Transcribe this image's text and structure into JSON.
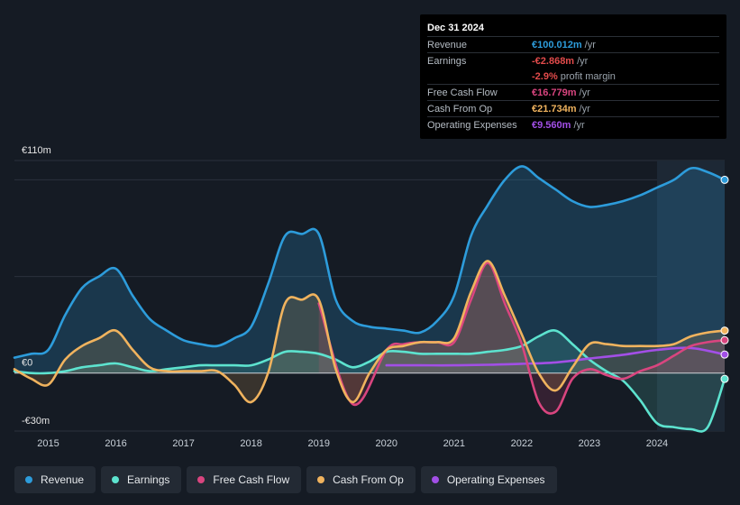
{
  "tooltip": {
    "date": "Dec 31 2024",
    "rows": [
      {
        "label": "Revenue",
        "value": "€100.012m",
        "unit": "/yr",
        "color": "#2d9cdb"
      },
      {
        "label": "Earnings",
        "value": "-€2.868m",
        "unit": "/yr",
        "color": "#e24b4b"
      },
      {
        "label": "",
        "value": "-2.9%",
        "unit": "profit margin",
        "color": "#e24b4b"
      },
      {
        "label": "Free Cash Flow",
        "value": "€16.779m",
        "unit": "/yr",
        "color": "#d9457f"
      },
      {
        "label": "Cash From Op",
        "value": "€21.734m",
        "unit": "/yr",
        "color": "#f0b35e"
      },
      {
        "label": "Operating Expenses",
        "value": "€9.560m",
        "unit": "/yr",
        "color": "#a24fe6"
      }
    ]
  },
  "legend": [
    {
      "label": "Revenue",
      "color": "#2d9cdb"
    },
    {
      "label": "Earnings",
      "color": "#5de3cf"
    },
    {
      "label": "Free Cash Flow",
      "color": "#d9457f"
    },
    {
      "label": "Cash From Op",
      "color": "#f0b35e"
    },
    {
      "label": "Operating Expenses",
      "color": "#a24fe6"
    }
  ],
  "chart_data": {
    "type": "line",
    "title": "",
    "xlabel": "",
    "ylabel": "",
    "y_tick_labels": [
      "€110m",
      "€0",
      "-€30m"
    ],
    "x_tick_labels": [
      "2015",
      "2016",
      "2017",
      "2018",
      "2019",
      "2020",
      "2021",
      "2022",
      "2023",
      "2024"
    ],
    "x_ticks": [
      2015,
      2016,
      2017,
      2018,
      2019,
      2020,
      2021,
      2022,
      2023,
      2024
    ],
    "xlim": [
      2014.5,
      2025.0
    ],
    "ylim": [
      -30,
      110
    ],
    "forecast_start": 2024.0,
    "series": [
      {
        "name": "Revenue",
        "color": "#2d9cdb",
        "fill": true,
        "x": [
          2014.5,
          2014.75,
          2015.0,
          2015.25,
          2015.5,
          2015.75,
          2016.0,
          2016.25,
          2016.5,
          2016.75,
          2017.0,
          2017.25,
          2017.5,
          2017.75,
          2018.0,
          2018.25,
          2018.5,
          2018.75,
          2019.0,
          2019.25,
          2019.5,
          2019.75,
          2020.0,
          2020.25,
          2020.5,
          2020.75,
          2021.0,
          2021.25,
          2021.5,
          2021.75,
          2022.0,
          2022.25,
          2022.5,
          2022.75,
          2023.0,
          2023.25,
          2023.5,
          2023.75,
          2024.0,
          2024.25,
          2024.5,
          2024.75,
          2025.0
        ],
        "values": [
          8,
          10,
          12,
          30,
          44,
          50,
          54,
          40,
          28,
          22,
          17,
          15,
          14,
          18,
          24,
          46,
          71,
          72,
          72,
          38,
          27,
          24,
          23,
          22,
          21,
          27,
          40,
          71,
          87,
          100,
          107,
          101,
          95,
          89,
          86,
          87,
          89,
          92,
          96,
          100,
          106,
          104,
          100
        ]
      },
      {
        "name": "Earnings",
        "color": "#5de3cf",
        "fill": true,
        "x": [
          2014.5,
          2014.75,
          2015.0,
          2015.25,
          2015.5,
          2015.75,
          2016.0,
          2016.25,
          2016.5,
          2016.75,
          2017.0,
          2017.25,
          2017.5,
          2017.75,
          2018.0,
          2018.25,
          2018.5,
          2018.75,
          2019.0,
          2019.25,
          2019.5,
          2019.75,
          2020.0,
          2020.25,
          2020.5,
          2020.75,
          2021.0,
          2021.25,
          2021.5,
          2021.75,
          2022.0,
          2022.25,
          2022.5,
          2022.75,
          2023.0,
          2023.25,
          2023.5,
          2023.75,
          2024.0,
          2024.25,
          2024.5,
          2024.75,
          2025.0
        ],
        "values": [
          1,
          0,
          0,
          1,
          3,
          4,
          5,
          3,
          1,
          2,
          3,
          4,
          4,
          4,
          4,
          7,
          11,
          11,
          10,
          7,
          3,
          6,
          11,
          11,
          10,
          10,
          10,
          10,
          11,
          12,
          14,
          19,
          22,
          15,
          7,
          1,
          -4,
          -14,
          -26,
          -28,
          -29,
          -28,
          -3
        ]
      },
      {
        "name": "Free Cash Flow",
        "color": "#d9457f",
        "fill": true,
        "x": [
          2019.0,
          2019.5,
          2020.0,
          2020.25,
          2020.5,
          2020.75,
          2021.0,
          2021.25,
          2021.5,
          2021.75,
          2022.0,
          2022.25,
          2022.5,
          2022.75,
          2023.0,
          2023.25,
          2023.5,
          2023.75,
          2024.0,
          2024.25,
          2024.5,
          2024.75,
          2025.0
        ],
        "values": [
          36,
          -16,
          12,
          15,
          16,
          16,
          16,
          38,
          57,
          36,
          15,
          -15,
          -20,
          -3,
          2,
          -1,
          -3,
          1,
          4,
          9,
          14,
          16,
          17
        ]
      },
      {
        "name": "Cash From Op",
        "color": "#f0b35e",
        "fill": true,
        "x": [
          2014.5,
          2014.75,
          2015.0,
          2015.25,
          2015.5,
          2015.75,
          2016.0,
          2016.25,
          2016.5,
          2016.75,
          2017.0,
          2017.25,
          2017.5,
          2017.75,
          2018.0,
          2018.25,
          2018.5,
          2018.75,
          2019.0,
          2019.25,
          2019.5,
          2019.75,
          2020.0,
          2020.25,
          2020.5,
          2020.75,
          2021.0,
          2021.25,
          2021.5,
          2021.75,
          2022.0,
          2022.25,
          2022.5,
          2022.75,
          2023.0,
          2023.25,
          2023.5,
          2023.75,
          2024.0,
          2024.25,
          2024.5,
          2024.75,
          2025.0
        ],
        "values": [
          2,
          -3,
          -6,
          7,
          14,
          18,
          22,
          12,
          3,
          1,
          1,
          1,
          1,
          -6,
          -15,
          0,
          36,
          38,
          38,
          2,
          -15,
          0,
          12,
          14,
          16,
          16,
          18,
          42,
          58,
          40,
          20,
          0,
          -9,
          3,
          15,
          15,
          14,
          14,
          14,
          15,
          19,
          21,
          22
        ]
      },
      {
        "name": "Operating Expenses",
        "color": "#a24fe6",
        "fill": false,
        "x": [
          2020.0,
          2020.5,
          2021.0,
          2021.5,
          2022.0,
          2022.5,
          2023.0,
          2023.5,
          2024.0,
          2024.5,
          2025.0
        ],
        "values": [
          4,
          4,
          4,
          4.3,
          4.8,
          5.5,
          7.5,
          9.5,
          12,
          13,
          9.6
        ]
      }
    ]
  }
}
